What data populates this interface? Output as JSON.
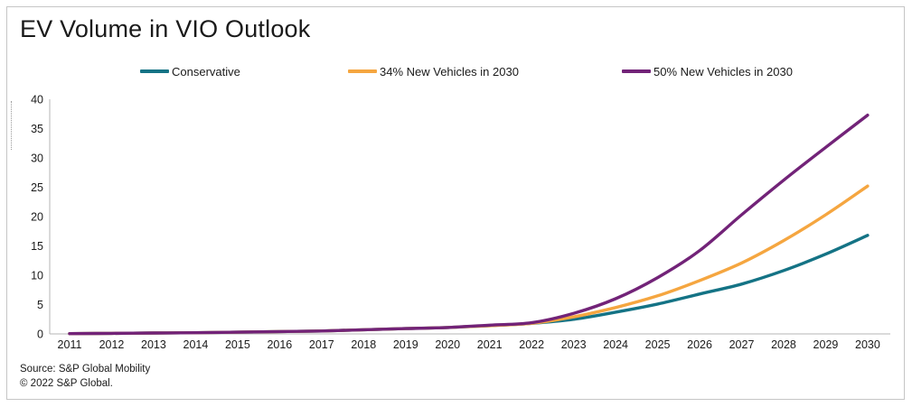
{
  "header": {
    "title": "EV Volume in VIO Outlook"
  },
  "footer": {
    "source": "Source: S&P Global Mobility",
    "copyright": "© 2022 S&P Global."
  },
  "chart_data": {
    "type": "line",
    "title": "EV Volume in VIO Outlook",
    "categories": [
      "2011",
      "2012",
      "2013",
      "2014",
      "2015",
      "2016",
      "2017",
      "2018",
      "2019",
      "2020",
      "2021",
      "2022",
      "2023",
      "2024",
      "2025",
      "2026",
      "2027",
      "2028",
      "2029",
      "2030"
    ],
    "series": [
      {
        "name": "Conservative",
        "color": "#147385",
        "values": [
          0.05,
          0.1,
          0.15,
          0.2,
          0.3,
          0.4,
          0.5,
          0.7,
          0.9,
          1.1,
          1.4,
          1.8,
          2.5,
          3.7,
          5.1,
          6.8,
          8.5,
          10.8,
          13.6,
          16.8
        ]
      },
      {
        "name": "34% New Vehicles in 2030",
        "color": "#F5A640",
        "values": [
          0.05,
          0.1,
          0.15,
          0.2,
          0.3,
          0.4,
          0.5,
          0.7,
          0.9,
          1.1,
          1.4,
          1.8,
          2.9,
          4.5,
          6.5,
          9.1,
          12.1,
          15.9,
          20.3,
          25.2
        ]
      },
      {
        "name": "50% New Vehicles in 2030",
        "color": "#722378",
        "values": [
          0.05,
          0.1,
          0.15,
          0.2,
          0.3,
          0.4,
          0.5,
          0.7,
          0.9,
          1.1,
          1.5,
          1.9,
          3.5,
          6.0,
          9.6,
          14.2,
          20.3,
          26.2,
          31.8,
          37.3
        ]
      }
    ],
    "xlabel": "",
    "ylabel": "",
    "ylim": [
      0,
      40
    ],
    "yticks": [
      0,
      5,
      10,
      15,
      20,
      25,
      30,
      35,
      40
    ],
    "grid": false,
    "legend_position": "top",
    "axis_color": "#b5b5b5"
  }
}
